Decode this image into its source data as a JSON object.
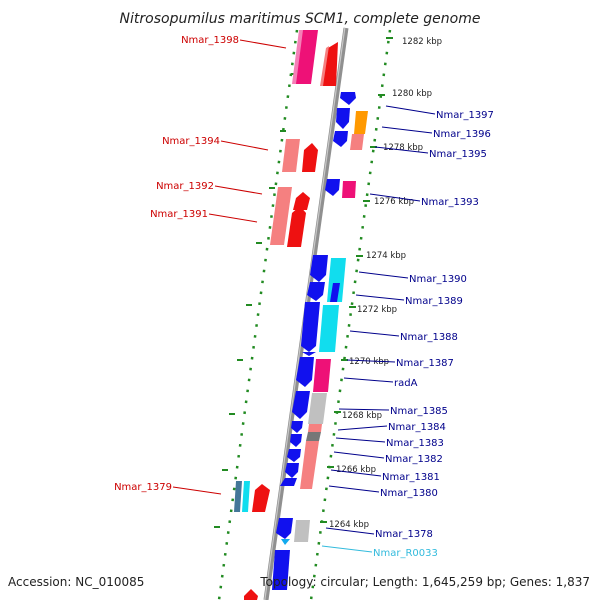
{
  "title": "Nitrosopumilus maritimus SCM1, complete genome",
  "footer": {
    "accession": "Accession: NC_010085",
    "topology": "Topology: circular; Length: 1,645,259 bp; Genes: 1,837"
  },
  "colors": {
    "left_label": "#cc0000",
    "right_label": "#00008b",
    "rna_label": "#33bbdd",
    "tick": "#228b22",
    "axis": "#909090"
  },
  "kbp_markers": [
    {
      "label": "1282 kbp"
    },
    {
      "label": "1280 kbp"
    },
    {
      "label": "1278 kbp"
    },
    {
      "label": "1276 kbp"
    },
    {
      "label": "1274 kbp"
    },
    {
      "label": "1272 kbp"
    },
    {
      "label": "1270 kbp"
    },
    {
      "label": "1268 kbp"
    },
    {
      "label": "1266 kbp"
    },
    {
      "label": "1264 kbp"
    }
  ],
  "left_genes": [
    {
      "label": "Nmar_1398"
    },
    {
      "label": "Nmar_1394"
    },
    {
      "label": "Nmar_1392"
    },
    {
      "label": "Nmar_1391"
    },
    {
      "label": "Nmar_1379"
    }
  ],
  "right_genes": [
    {
      "label": "Nmar_1397"
    },
    {
      "label": "Nmar_1396"
    },
    {
      "label": "Nmar_1395"
    },
    {
      "label": "Nmar_1393"
    },
    {
      "label": "Nmar_1390"
    },
    {
      "label": "Nmar_1389"
    },
    {
      "label": "Nmar_1388"
    },
    {
      "label": "Nmar_1387"
    },
    {
      "label": "radA"
    },
    {
      "label": "Nmar_1385"
    },
    {
      "label": "Nmar_1384"
    },
    {
      "label": "Nmar_1383"
    },
    {
      "label": "Nmar_1382"
    },
    {
      "label": "Nmar_1381"
    },
    {
      "label": "Nmar_1380"
    },
    {
      "label": "Nmar_1378"
    },
    {
      "label": "Nmar_R0033"
    }
  ]
}
